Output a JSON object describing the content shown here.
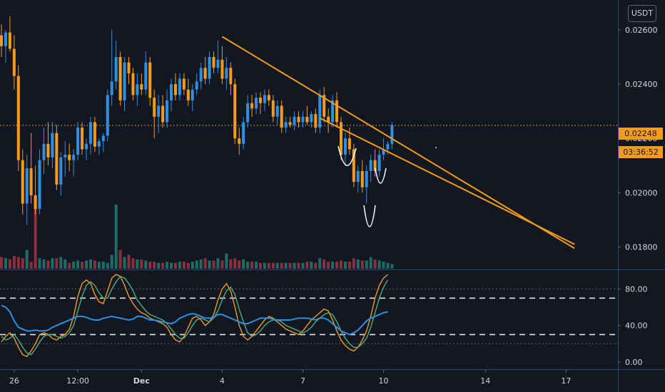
{
  "quote_currency": "USDT",
  "current_price": "0.02248",
  "countdown": "03:36:52",
  "colors": {
    "background": "#131722",
    "up": "#2f8fe0",
    "down": "#f29b1f",
    "vol_up": "#1f6b66",
    "vol_down": "#8a2f3e",
    "trendline": "#f29b1f",
    "axis_line": "#2a4a7a",
    "k_line": "#f29b1f",
    "d_line": "#4caf7a",
    "rsi_line": "#2f8fe0"
  },
  "chart_data": [
    {
      "type": "candlestick",
      "ylim": [
        0.0172,
        0.0271
      ],
      "y_ticks": [
        "0.02600",
        "0.02400",
        "0.02200",
        "0.02000",
        "0.01800"
      ],
      "y_tick_values": [
        0.026,
        0.024,
        0.022,
        0.02,
        0.018
      ],
      "x_ticks": [
        "26",
        "12:00",
        "Dec",
        "4",
        "7",
        "10",
        "14",
        "17"
      ],
      "x_tick_index": [
        3,
        18,
        33,
        52,
        71,
        90,
        114,
        133
      ],
      "candles": [
        [
          0.0258,
          0.0262,
          0.025,
          0.0254
        ],
        [
          0.0254,
          0.026,
          0.0248,
          0.0259
        ],
        [
          0.0259,
          0.0265,
          0.0252,
          0.0253
        ],
        [
          0.0253,
          0.0258,
          0.0238,
          0.0243
        ],
        [
          0.0243,
          0.0247,
          0.0208,
          0.0212
        ],
        [
          0.0212,
          0.0216,
          0.0192,
          0.0196
        ],
        [
          0.0196,
          0.0214,
          0.0188,
          0.0209
        ],
        [
          0.0209,
          0.0222,
          0.0196,
          0.0199
        ],
        [
          0.0199,
          0.021,
          0.0192,
          0.0194
        ],
        [
          0.0194,
          0.0216,
          0.0192,
          0.0212
        ],
        [
          0.0212,
          0.0224,
          0.0207,
          0.0218
        ],
        [
          0.0218,
          0.0226,
          0.021,
          0.0213
        ],
        [
          0.0213,
          0.0226,
          0.0209,
          0.0222
        ],
        [
          0.0222,
          0.0225,
          0.0201,
          0.0203
        ],
        [
          0.0203,
          0.0215,
          0.0199,
          0.0213
        ],
        [
          0.0213,
          0.0219,
          0.0206,
          0.0214
        ],
        [
          0.0214,
          0.0218,
          0.0208,
          0.0212
        ],
        [
          0.0212,
          0.0216,
          0.0206,
          0.0214
        ],
        [
          0.0214,
          0.0226,
          0.0212,
          0.0224
        ],
        [
          0.0224,
          0.0226,
          0.0214,
          0.0216
        ],
        [
          0.0216,
          0.022,
          0.0212,
          0.0218
        ],
        [
          0.0218,
          0.0228,
          0.0214,
          0.0226
        ],
        [
          0.0226,
          0.0228,
          0.0215,
          0.0217
        ],
        [
          0.0217,
          0.022,
          0.0214,
          0.0219
        ],
        [
          0.0219,
          0.0222,
          0.0215,
          0.0221
        ],
        [
          0.0221,
          0.0238,
          0.0219,
          0.0236
        ],
        [
          0.0236,
          0.026,
          0.0232,
          0.0241
        ],
        [
          0.0241,
          0.0256,
          0.0238,
          0.025
        ],
        [
          0.025,
          0.0252,
          0.0232,
          0.0234
        ],
        [
          0.0234,
          0.025,
          0.023,
          0.0248
        ],
        [
          0.0248,
          0.025,
          0.024,
          0.0244
        ],
        [
          0.0244,
          0.0246,
          0.0234,
          0.0236
        ],
        [
          0.0236,
          0.0244,
          0.0232,
          0.024
        ],
        [
          0.024,
          0.0244,
          0.0236,
          0.0238
        ],
        [
          0.0238,
          0.0252,
          0.0236,
          0.0248
        ],
        [
          0.0248,
          0.025,
          0.0232,
          0.0235
        ],
        [
          0.0235,
          0.0238,
          0.022,
          0.0228
        ],
        [
          0.0228,
          0.0236,
          0.0222,
          0.0232
        ],
        [
          0.0232,
          0.0236,
          0.0224,
          0.0226
        ],
        [
          0.0226,
          0.0238,
          0.0224,
          0.0234
        ],
        [
          0.0234,
          0.0242,
          0.023,
          0.024
        ],
        [
          0.024,
          0.0244,
          0.0234,
          0.0236
        ],
        [
          0.0236,
          0.0244,
          0.0234,
          0.0242
        ],
        [
          0.0242,
          0.0244,
          0.0236,
          0.0238
        ],
        [
          0.0238,
          0.0242,
          0.0232,
          0.0234
        ],
        [
          0.0234,
          0.024,
          0.023,
          0.0238
        ],
        [
          0.0238,
          0.0244,
          0.0236,
          0.0241
        ],
        [
          0.0241,
          0.0248,
          0.0238,
          0.0246
        ],
        [
          0.0246,
          0.025,
          0.024,
          0.0242
        ],
        [
          0.0242,
          0.0252,
          0.024,
          0.025
        ],
        [
          0.025,
          0.0252,
          0.0244,
          0.0246
        ],
        [
          0.0246,
          0.0256,
          0.0244,
          0.0249
        ],
        [
          0.0249,
          0.0254,
          0.024,
          0.0242
        ],
        [
          0.0242,
          0.025,
          0.0238,
          0.0246
        ],
        [
          0.0246,
          0.0248,
          0.0236,
          0.024
        ],
        [
          0.024,
          0.0242,
          0.0218,
          0.022
        ],
        [
          0.022,
          0.0224,
          0.0214,
          0.0218
        ],
        [
          0.0218,
          0.0228,
          0.0216,
          0.0226
        ],
        [
          0.0226,
          0.0236,
          0.0224,
          0.0233
        ],
        [
          0.0233,
          0.0236,
          0.0228,
          0.0231
        ],
        [
          0.0231,
          0.0237,
          0.0229,
          0.0235
        ],
        [
          0.0235,
          0.0237,
          0.0229,
          0.0233
        ],
        [
          0.0233,
          0.0238,
          0.023,
          0.0236
        ],
        [
          0.0236,
          0.0238,
          0.0232,
          0.0234
        ],
        [
          0.0234,
          0.0236,
          0.0226,
          0.0228
        ],
        [
          0.0228,
          0.0234,
          0.0225,
          0.0232
        ],
        [
          0.0232,
          0.0234,
          0.0222,
          0.0224
        ],
        [
          0.0224,
          0.0228,
          0.0222,
          0.0226
        ],
        [
          0.0226,
          0.0228,
          0.0224,
          0.0225
        ],
        [
          0.0225,
          0.023,
          0.0223,
          0.0228
        ],
        [
          0.0228,
          0.023,
          0.0224,
          0.0226
        ],
        [
          0.0226,
          0.023,
          0.0224,
          0.0228
        ],
        [
          0.0228,
          0.0232,
          0.0225,
          0.0226
        ],
        [
          0.0226,
          0.023,
          0.0224,
          0.0229
        ],
        [
          0.0229,
          0.0231,
          0.0222,
          0.0224
        ],
        [
          0.0224,
          0.0238,
          0.0222,
          0.0236
        ],
        [
          0.0236,
          0.0239,
          0.0226,
          0.0228
        ],
        [
          0.0228,
          0.0231,
          0.0222,
          0.0226
        ],
        [
          0.0226,
          0.0236,
          0.0224,
          0.0234
        ],
        [
          0.0234,
          0.0237,
          0.0224,
          0.0226
        ],
        [
          0.0226,
          0.0228,
          0.0212,
          0.0214
        ],
        [
          0.0214,
          0.0222,
          0.021,
          0.022
        ],
        [
          0.022,
          0.0224,
          0.0214,
          0.0216
        ],
        [
          0.0216,
          0.0218,
          0.0202,
          0.0204
        ],
        [
          0.0204,
          0.021,
          0.02,
          0.0208
        ],
        [
          0.0208,
          0.0212,
          0.02,
          0.0202
        ],
        [
          0.0202,
          0.021,
          0.0196,
          0.0208
        ],
        [
          0.0208,
          0.0214,
          0.0204,
          0.0212
        ],
        [
          0.0212,
          0.0216,
          0.0206,
          0.0208
        ],
        [
          0.0208,
          0.0216,
          0.0206,
          0.0214
        ],
        [
          0.0214,
          0.022,
          0.0212,
          0.0216
        ],
        [
          0.0216,
          0.0219,
          0.0214,
          0.0218
        ],
        [
          0.0218,
          0.0226,
          0.0216,
          0.0225
        ]
      ],
      "trendlines": [
        {
          "from": [
            52,
            0.02575
          ],
          "to": [
            135,
            0.01795
          ]
        },
        {
          "from": [
            75,
            0.02275
          ],
          "to": [
            135,
            0.0181
          ]
        }
      ],
      "current_price_value": 0.02248,
      "volumes": [
        1.0,
        0.9,
        0.8,
        1.1,
        1.0,
        0.9,
        1.6,
        0.6,
        5.8,
        0.9,
        0.8,
        0.7,
        0.9,
        0.9,
        1.0,
        0.8,
        0.5,
        0.6,
        0.7,
        0.6,
        0.7,
        0.8,
        0.7,
        0.6,
        0.6,
        0.5,
        1.2,
        5.5,
        1.6,
        1.0,
        1.2,
        0.9,
        0.8,
        0.8,
        0.7,
        0.6,
        0.6,
        0.5,
        0.5,
        0.6,
        0.5,
        0.5,
        0.6,
        0.6,
        0.5,
        0.6,
        0.7,
        0.8,
        0.9,
        0.7,
        0.7,
        0.9,
        0.7,
        1.3,
        0.8,
        0.9,
        0.7,
        0.8,
        0.6,
        0.6,
        0.6,
        0.5,
        0.5,
        0.5,
        0.5,
        0.5,
        0.5,
        0.5,
        0.5,
        0.5,
        0.5,
        0.5,
        0.6,
        0.6,
        0.5,
        0.9,
        0.8,
        0.6,
        0.6,
        0.6,
        0.7,
        0.6,
        0.6,
        0.9,
        0.8,
        0.7,
        0.7,
        1.0,
        0.8,
        0.7,
        0.6,
        0.5,
        0.4
      ]
    },
    {
      "type": "line",
      "name": "",
      "ylim": [
        -8,
        100
      ],
      "y_ticks": [
        "80.00",
        "40.00",
        "0.00"
      ],
      "y_tick_values": [
        80,
        40,
        0
      ],
      "bands": [
        70,
        30
      ],
      "outer_bands": [
        80,
        20
      ],
      "series": [
        {
          "values": [
            22,
            28,
            32,
            26,
            16,
            8,
            6,
            12,
            20,
            30,
            32,
            30,
            26,
            24,
            28,
            30,
            36,
            50,
            72,
            86,
            90,
            86,
            74,
            66,
            64,
            78,
            92,
            96,
            94,
            84,
            72,
            64,
            58,
            54,
            52,
            48,
            46,
            44,
            42,
            38,
            30,
            24,
            22,
            28,
            38,
            48,
            50,
            46,
            40,
            44,
            52,
            68,
            80,
            86,
            78,
            60,
            40,
            28,
            24,
            28,
            34,
            40,
            46,
            50,
            48,
            44,
            40,
            36,
            34,
            32,
            30,
            34,
            40,
            46,
            50,
            54,
            58,
            56,
            46,
            34,
            24,
            18,
            14,
            12,
            16,
            24,
            34,
            50,
            70,
            84,
            92,
            96
          ]
        },
        {
          "values": [
            28,
            24,
            26,
            30,
            24,
            16,
            10,
            8,
            14,
            22,
            28,
            30,
            30,
            28,
            26,
            28,
            32,
            40,
            56,
            72,
            84,
            88,
            84,
            76,
            70,
            70,
            80,
            88,
            94,
            92,
            86,
            78,
            68,
            62,
            56,
            52,
            50,
            48,
            46,
            42,
            36,
            30,
            26,
            26,
            32,
            40,
            46,
            48,
            46,
            44,
            48,
            56,
            68,
            78,
            82,
            74,
            58,
            44,
            32,
            28,
            30,
            34,
            40,
            44,
            46,
            46,
            44,
            40,
            38,
            36,
            34,
            32,
            34,
            38,
            44,
            48,
            52,
            54,
            52,
            44,
            34,
            26,
            20,
            16,
            16,
            20,
            26,
            38,
            54,
            70,
            82,
            90
          ]
        },
        {
          "values": [
            62,
            60,
            55,
            45,
            38,
            36,
            34,
            34,
            35,
            34,
            34,
            35,
            38,
            40,
            42,
            44,
            46,
            48,
            50,
            50,
            49,
            47,
            46,
            46,
            48,
            49,
            50,
            49,
            48,
            47,
            46,
            47,
            50,
            50,
            48,
            46,
            46,
            45,
            44,
            43,
            42,
            44,
            48,
            50,
            52,
            53,
            52,
            50,
            48,
            48,
            49,
            52,
            52,
            50,
            48,
            46,
            44,
            42,
            42,
            44,
            46,
            48,
            48,
            48,
            47,
            46,
            46,
            46,
            46,
            47,
            48,
            48,
            48,
            47,
            46,
            48,
            48,
            46,
            42,
            38,
            34,
            32,
            30,
            32,
            35,
            40,
            45,
            48,
            50,
            52,
            54,
            55
          ]
        }
      ]
    }
  ]
}
